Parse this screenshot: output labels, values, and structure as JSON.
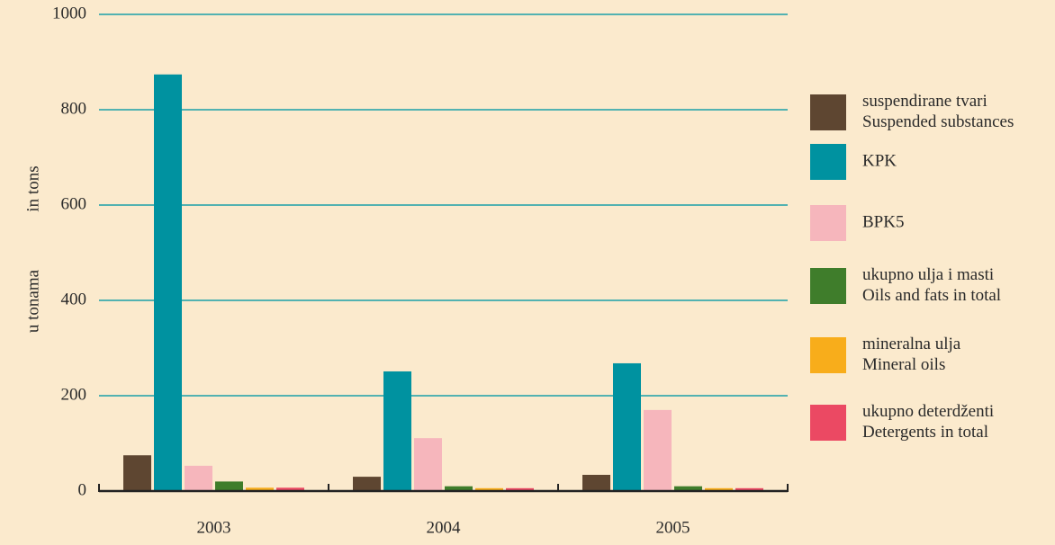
{
  "chart_data": {
    "type": "bar",
    "ylabel": [
      "u tonama",
      "in tons"
    ],
    "categories": [
      "2003",
      "2004",
      "2005"
    ],
    "series": [
      {
        "name": [
          "suspendirane tvari",
          "Suspended substances"
        ],
        "color": "#5e4631",
        "values": [
          75,
          30,
          34
        ]
      },
      {
        "name": [
          "KPK"
        ],
        "color": "#0092a0",
        "values": [
          874,
          251,
          268
        ]
      },
      {
        "name": [
          "BPK5"
        ],
        "color": "#f6b6bc",
        "values": [
          53,
          111,
          170
        ]
      },
      {
        "name": [
          "ukupno ulja i masti",
          "Oils and fats in total"
        ],
        "color": "#3f7d2b",
        "values": [
          20,
          10,
          10
        ]
      },
      {
        "name": [
          "mineralna ulja",
          "Mineral oils"
        ],
        "color": "#f8ad1b",
        "values": [
          7,
          6,
          6
        ]
      },
      {
        "name": [
          "ukupno deterdženti",
          "Detergents in total"
        ],
        "color": "#eb4963",
        "values": [
          7,
          6,
          6
        ]
      }
    ],
    "ylim": [
      0,
      1000
    ],
    "yticks": [
      0,
      200,
      400,
      600,
      800,
      1000
    ],
    "grid": true,
    "legend": "right"
  }
}
